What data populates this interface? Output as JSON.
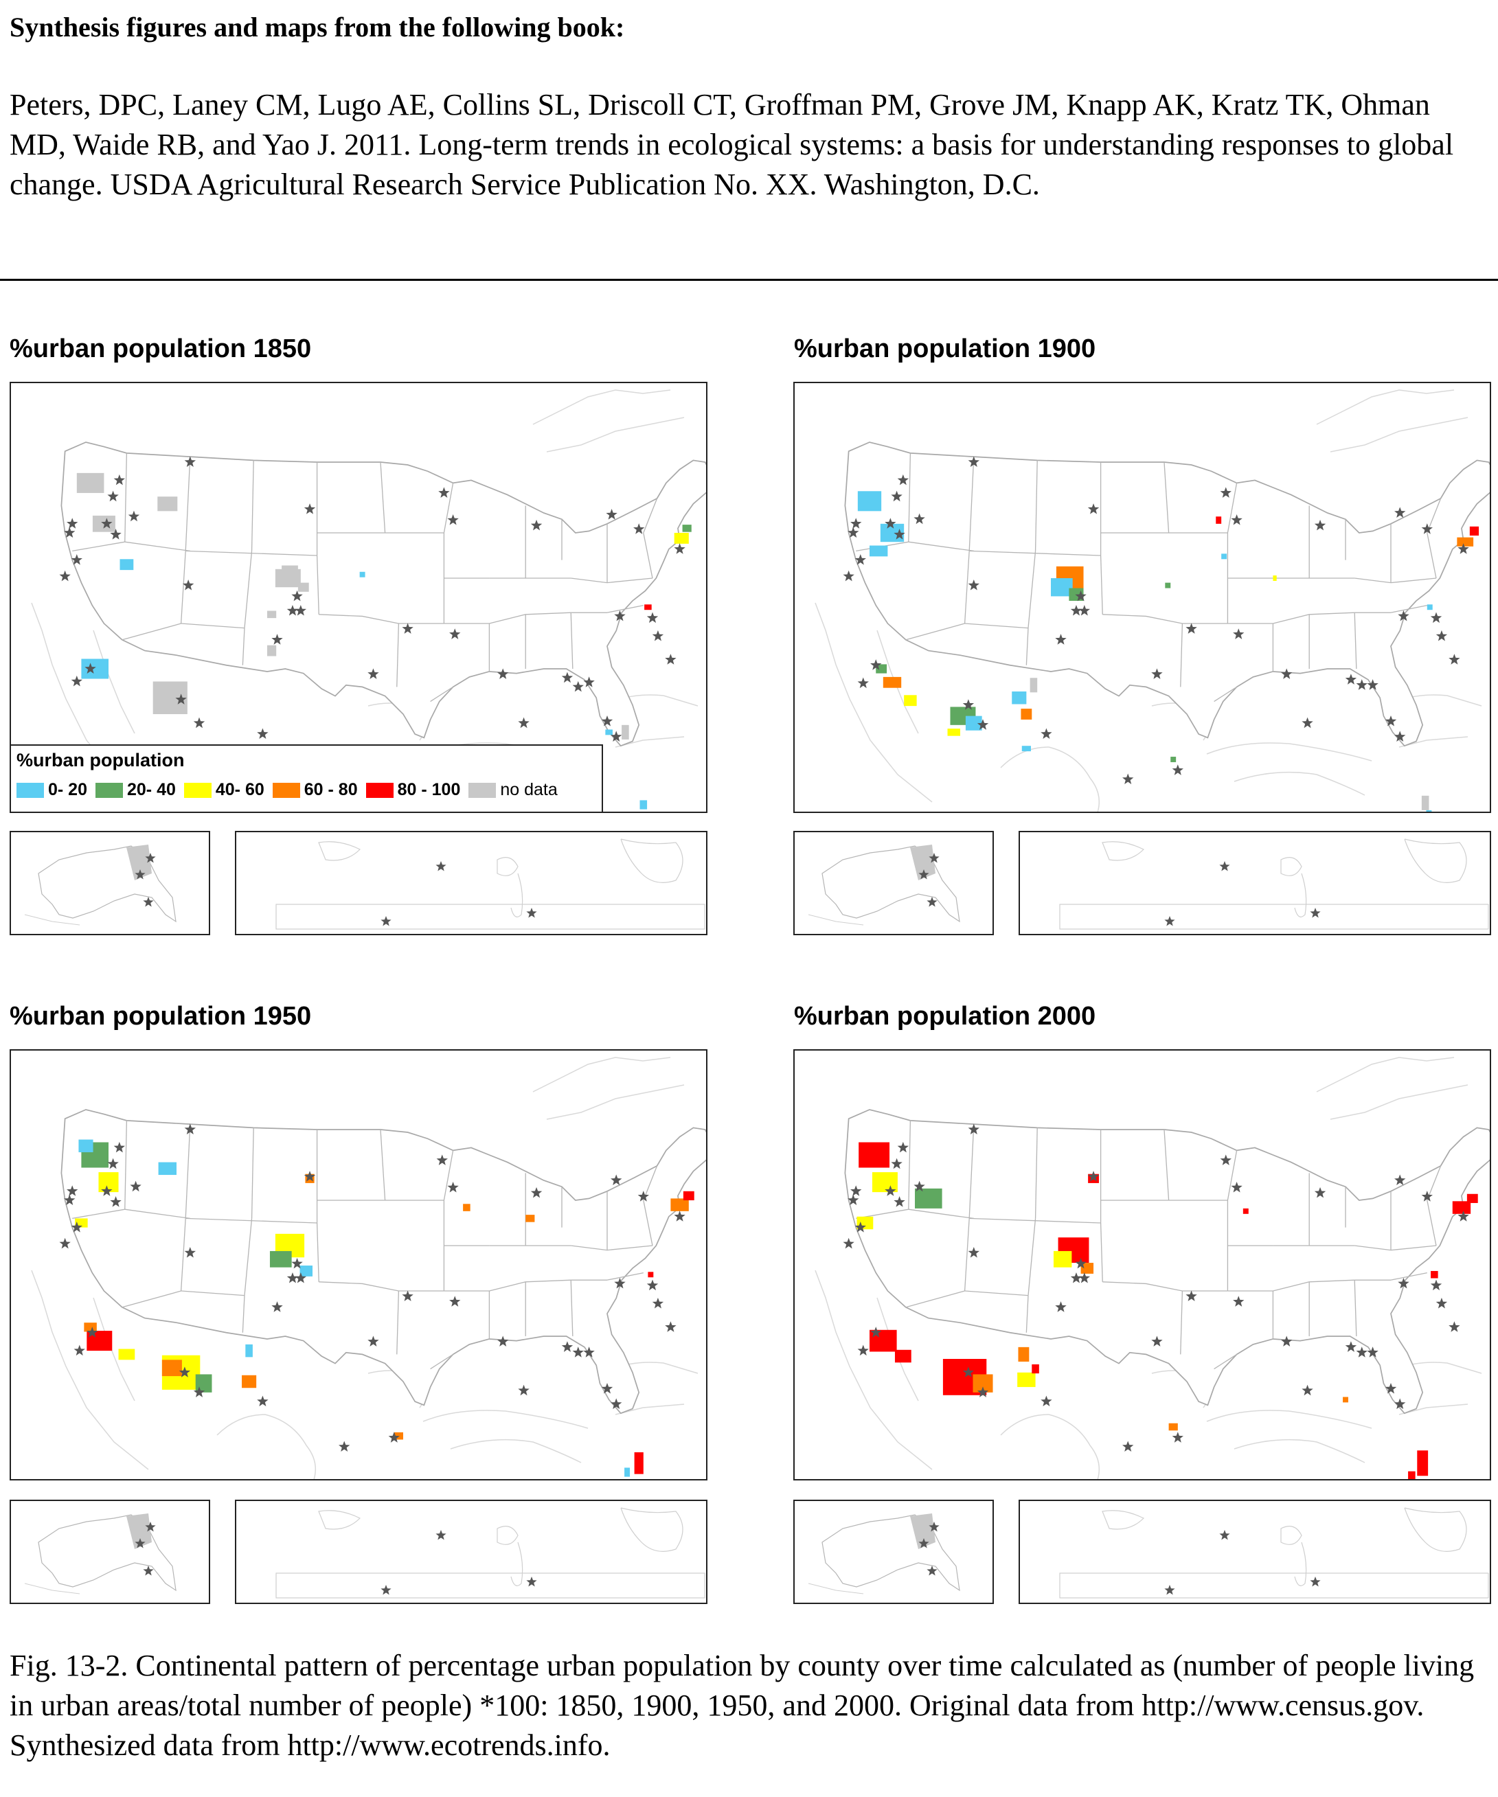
{
  "document": {
    "heading": "Synthesis figures and maps from the following book:",
    "citation": "Peters, DPC, Laney CM, Lugo AE,  Collins SL, Driscoll CT, Groffman PM, Grove JM, Knapp AK, Kratz TK, Ohman MD, Waide RB, and Yao J. 2011. Long-term trends in ecological systems: a basis for understanding responses to global change. USDA Agricultural Research Service Publication No. XX. Washington, D.C.",
    "caption": "Fig. 13-2. Continental pattern of percentage urban population by county over time calculated as (number of people living in urban areas/total number of people) *100: 1850, 1900, 1950, and 2000.  Original data from http://www.census.gov.  Synthesized data from http://www.ecotrends.info."
  },
  "maps": [
    {
      "title": "%urban population 1850",
      "year": "1850"
    },
    {
      "title": "%urban population 1900",
      "year": "1900"
    },
    {
      "title": "%urban population 1950",
      "year": "1950"
    },
    {
      "title": "%urban population 2000",
      "year": "2000"
    }
  ],
  "legend": {
    "title": "%urban population",
    "items": [
      {
        "label": "0- 20",
        "color": "#5bcdf2"
      },
      {
        "label": "20- 40",
        "color": "#5fa860"
      },
      {
        "label": "40- 60",
        "color": "#ffff00"
      },
      {
        "label": "60 - 80",
        "color": "#ff7f00"
      },
      {
        "label": "80 - 100",
        "color": "#ff0000"
      },
      {
        "label": "no data",
        "color": "#c8c8c8"
      }
    ]
  },
  "map_symbols": {
    "site_marker": "star-icon",
    "site_marker_color": "#555555"
  }
}
